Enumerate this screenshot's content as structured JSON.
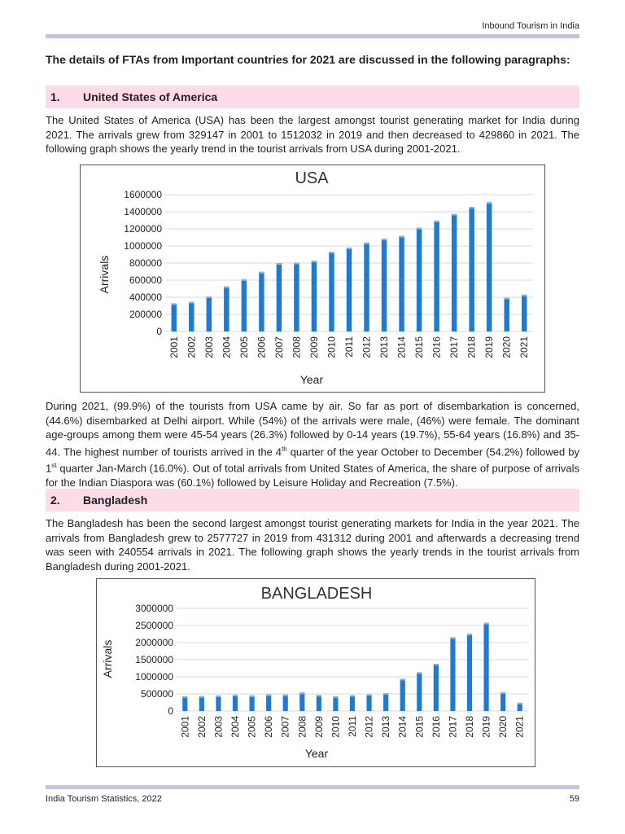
{
  "header": {
    "running_title": "Inbound Tourism in India"
  },
  "intro": "The details of FTAs from Important countries for 2021 are discussed in the following paragraphs:",
  "section1": {
    "number": "1.",
    "title": "United States of America",
    "para1": "The United States of America (USA) has been the largest amongst tourist generating market for India during 2021. The arrivals grew from 329147 in 2001 to 1512032 in 2019 and then decreased to 429860 in 2021. The following graph shows the yearly trend in the tourist arrivals from USA during 2001-2021.",
    "para2_a": "During 2021, (99.9%) of the tourists from USA came by air. So far as port of disembarkation is concerned, (44.6%) disembarked at Delhi airport. While (54%) of the arrivals were male, (46%) were female. The dominant age-groups among them were 45-54 years (26.3%) followed by 0-14 years (19.7%), 55-64 years (16.8%) and 35-44. The highest number of tourists arrived in the 4",
    "para2_sup1": "th",
    "para2_b": " quarter of the year October to December (54.2%) followed by 1",
    "para2_sup2": "st",
    "para2_c": " quarter Jan-March (16.0%).  Out of total arrivals from United States of America, the share of purpose of arrivals for the Indian Diaspora was (60.1%) followed by Leisure Holiday and Recreation (7.5%)."
  },
  "section2": {
    "number": "2.",
    "title": "Bangladesh",
    "para1": "The Bangladesh has been the second largest amongst tourist generating markets for India in the year 2021. The arrivals from Bangladesh grew to 2577727 in 2019 from 431312 during 2001 and afterwards a decreasing trend was seen with 240554 arrivals in 2021. The following graph shows the yearly trends in the tourist arrivals from Bangladesh during 2001-2021."
  },
  "chart_data": [
    {
      "type": "bar",
      "title": "USA",
      "xlabel": "Year",
      "ylabel": "Arrivals",
      "ylim": [
        0,
        1600000
      ],
      "yticks": [
        "0",
        "200000",
        "400000",
        "600000",
        "800000",
        "1000000",
        "1200000",
        "1400000",
        "1600000"
      ],
      "grid": true,
      "categories": [
        "2001",
        "2002",
        "2003",
        "2004",
        "2005",
        "2006",
        "2007",
        "2008",
        "2009",
        "2010",
        "2011",
        "2012",
        "2013",
        "2014",
        "2015",
        "2016",
        "2017",
        "2018",
        "2019",
        "2020",
        "2021"
      ],
      "values": [
        329147,
        348000,
        410000,
        526000,
        611000,
        697000,
        799000,
        804000,
        827000,
        932000,
        980000,
        1039000,
        1085000,
        1118000,
        1213000,
        1296000,
        1376000,
        1456000,
        1512032,
        395000,
        429860
      ],
      "color": "#1f7ad0"
    },
    {
      "type": "bar",
      "title": "BANGLADESH",
      "xlabel": "Year",
      "ylabel": "Arrivals",
      "ylim": [
        0,
        3000000
      ],
      "yticks": [
        "0",
        "500000",
        "1000000",
        "1500000",
        "2000000",
        "2500000",
        "3000000"
      ],
      "grid": true,
      "categories": [
        "2001",
        "2002",
        "2003",
        "2004",
        "2005",
        "2006",
        "2007",
        "2008",
        "2009",
        "2010",
        "2011",
        "2012",
        "2013",
        "2014",
        "2015",
        "2016",
        "2017",
        "2018",
        "2019",
        "2020",
        "2021"
      ],
      "values": [
        431312,
        435000,
        454000,
        478000,
        456000,
        484000,
        480000,
        541000,
        468000,
        431000,
        464000,
        488000,
        524000,
        942000,
        1133000,
        1380000,
        2156000,
        2256000,
        2577727,
        550000,
        240554
      ],
      "color": "#1f7ad0"
    }
  ],
  "footer": {
    "left": "India Tourism Statistics, 2022",
    "page": "59"
  }
}
